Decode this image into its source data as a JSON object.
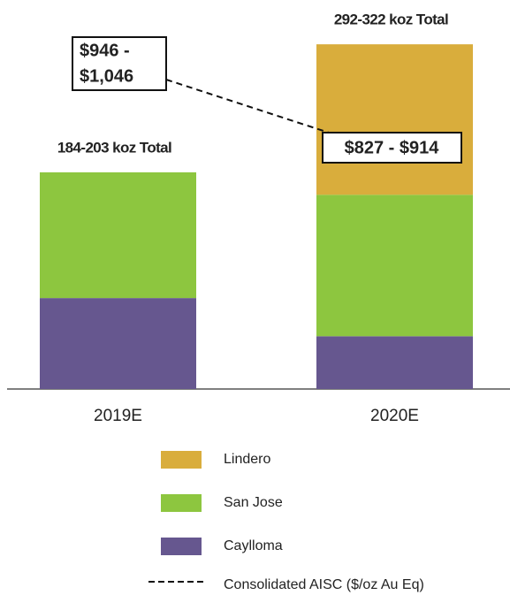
{
  "chart_data": {
    "type": "stacked_bar",
    "categories": [
      "2019E",
      "2020E"
    ],
    "series": [
      {
        "name": "Caylloma",
        "color": "#66578f",
        "values": [
          81,
          47
        ]
      },
      {
        "name": "San Jose",
        "color": "#8dc63f",
        "values": [
          112,
          126
        ]
      },
      {
        "name": "Lindero",
        "color": "#d9ad3c",
        "values": [
          0,
          134
        ]
      }
    ],
    "totals": [
      "184-203 koz Total",
      "292-322 koz Total"
    ],
    "aisc": {
      "name": "Consolidated AISC ($/oz Au Eq)",
      "labels": [
        [
          "$946 -",
          "$1,046"
        ],
        [
          "$827 - $914"
        ]
      ]
    }
  }
}
